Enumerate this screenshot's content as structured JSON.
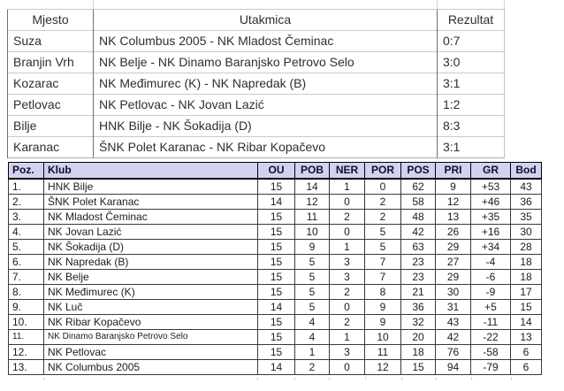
{
  "results_table": {
    "headers": {
      "mjesto": "Mjesto",
      "utakmica": "Utakmica",
      "rezultat": "Rezultat"
    },
    "rows": [
      {
        "mjesto": "Suza",
        "utakmica": "NK Columbus 2005 - NK Mladost Čeminac",
        "rezultat": "0:7"
      },
      {
        "mjesto": "Branjin Vrh",
        "utakmica": "NK Belje - NK Dinamo Baranjsko Petrovo Selo",
        "rezultat": "3:0"
      },
      {
        "mjesto": "Kozarac",
        "utakmica": "NK Međimurec (K) - NK Napredak (B)",
        "rezultat": "3:1"
      },
      {
        "mjesto": "Petlovac",
        "utakmica": "NK Petlovac - NK Jovan Lazić",
        "rezultat": "1:2"
      },
      {
        "mjesto": "Bilje",
        "utakmica": "HNK Bilje - NK Šokadija (D)",
        "rezultat": "8:3"
      },
      {
        "mjesto": "Karanac",
        "utakmica": "ŠNK Polet Karanac - NK Ribar Kopačevo",
        "rezultat": "3:1"
      }
    ]
  },
  "standings_table": {
    "headers": [
      "Poz.",
      "Klub",
      "OU",
      "POB",
      "NER",
      "POR",
      "POS",
      "PRI",
      "GR",
      "Bod"
    ],
    "rows": [
      [
        "1.",
        "HNK Bilje",
        "15",
        "14",
        "1",
        "0",
        "62",
        "9",
        "+53",
        "43"
      ],
      [
        "2.",
        "ŠNK Polet Karanac",
        "14",
        "12",
        "0",
        "2",
        "58",
        "12",
        "+46",
        "36"
      ],
      [
        "3.",
        "NK Mladost Čeminac",
        "15",
        "11",
        "2",
        "2",
        "48",
        "13",
        "+35",
        "35"
      ],
      [
        "4.",
        "NK Jovan Lazić",
        "15",
        "10",
        "0",
        "5",
        "42",
        "26",
        "+16",
        "30"
      ],
      [
        "5.",
        "NK Šokadija (D)",
        "15",
        "9",
        "1",
        "5",
        "63",
        "29",
        "+34",
        "28"
      ],
      [
        "6.",
        "NK Napredak (B)",
        "15",
        "5",
        "3",
        "7",
        "23",
        "27",
        "-4",
        "18"
      ],
      [
        "7.",
        "NK Belje",
        "15",
        "5",
        "3",
        "7",
        "23",
        "29",
        "-6",
        "18"
      ],
      [
        "8.",
        "NK Međimurec (K)",
        "15",
        "5",
        "2",
        "8",
        "21",
        "30",
        "-9",
        "17"
      ],
      [
        "9.",
        "NK Luč",
        "14",
        "5",
        "0",
        "9",
        "36",
        "31",
        "+5",
        "15"
      ],
      [
        "10.",
        "NK Ribar Kopačevo",
        "15",
        "4",
        "2",
        "9",
        "32",
        "43",
        "-11",
        "14"
      ],
      [
        "11.",
        "NK Dinamo Baranjsko Petrovo Selo",
        "15",
        "4",
        "1",
        "10",
        "20",
        "42",
        "-22",
        "13"
      ],
      [
        "12.",
        "NK Petlovac",
        "15",
        "1",
        "3",
        "11",
        "18",
        "76",
        "-58",
        "6"
      ],
      [
        "13.",
        "NK Columbus 2005",
        "14",
        "2",
        "0",
        "12",
        "15",
        "94",
        "-79",
        "6"
      ]
    ]
  },
  "colors": {
    "standings_header_bg": "#d2d2f0",
    "standings_border": "#1a1a1a",
    "results_grid_vertical": "#6e6e6e",
    "results_grid_horizontal": "#c9c9c9",
    "text": "#1c1c1c"
  }
}
